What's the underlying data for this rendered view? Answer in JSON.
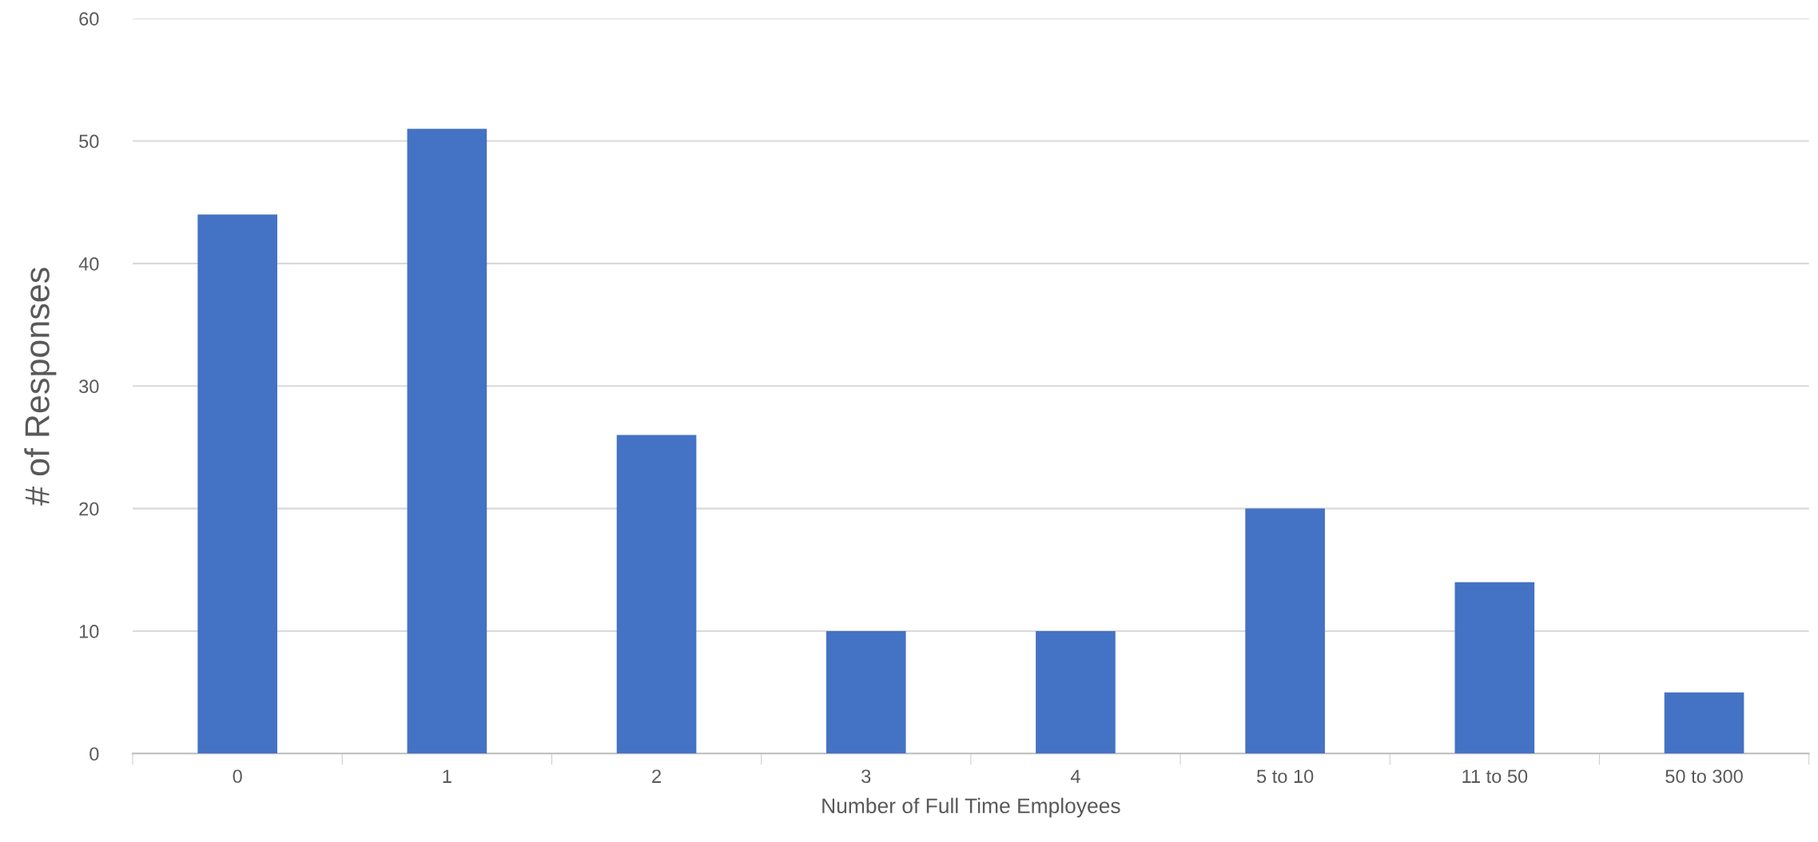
{
  "chart_data": {
    "type": "bar",
    "xlabel": "Number of Full Time Employees",
    "ylabel": "# of Responses",
    "categories": [
      "0",
      "1",
      "2",
      "3",
      "4",
      "5 to 10",
      "11 to 50",
      "50 to 300"
    ],
    "values": [
      44,
      51,
      26,
      10,
      10,
      20,
      14,
      5
    ],
    "color": "#4472c4",
    "ylim": [
      0,
      60
    ],
    "yticks": [
      0,
      10,
      20,
      30,
      40,
      50,
      60
    ],
    "grid": "y"
  }
}
